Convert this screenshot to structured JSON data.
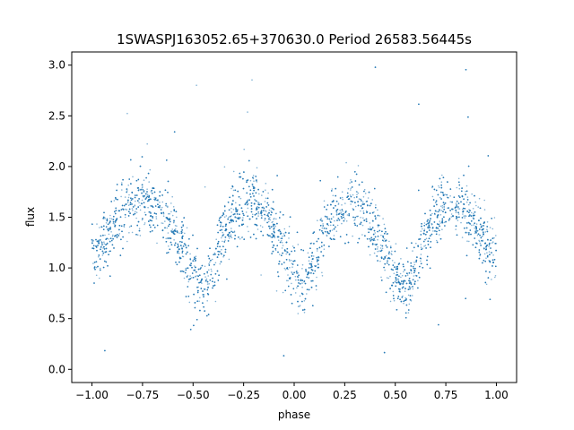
{
  "chart_data": {
    "type": "scatter",
    "title": "1SWASPJ163052.65+370630.0 Period 26583.56445s",
    "xlabel": "phase",
    "ylabel": "flux",
    "xlim": [
      -1.1,
      1.1
    ],
    "ylim": [
      -0.13,
      3.13
    ],
    "xticks": [
      -1.0,
      -0.75,
      -0.5,
      -0.25,
      0.0,
      0.25,
      0.5,
      0.75,
      1.0
    ],
    "xtick_labels": [
      "−1.00",
      "−0.75",
      "−0.50",
      "−0.25",
      "0.00",
      "0.25",
      "0.50",
      "0.75",
      "1.00"
    ],
    "yticks": [
      0.0,
      0.5,
      1.0,
      1.5,
      2.0,
      2.5,
      3.0
    ],
    "ytick_labels": [
      "0.0",
      "0.5",
      "1.0",
      "1.5",
      "2.0",
      "2.5",
      "3.0"
    ],
    "grid": false,
    "point_color": "#1f77b4",
    "series": [
      {
        "phase": [
          -1.0,
          -0.95,
          -0.9,
          -0.85,
          -0.8,
          -0.75,
          -0.7,
          -0.65,
          -0.6,
          -0.55,
          -0.5,
          -0.45,
          -0.4,
          -0.35,
          -0.3,
          -0.25,
          -0.2,
          -0.15,
          -0.1,
          -0.05,
          0.0,
          0.05,
          0.1,
          0.15,
          0.2,
          0.25,
          0.3,
          0.35,
          0.4,
          0.45,
          0.5,
          0.55,
          0.6,
          0.65,
          0.7,
          0.75,
          0.8,
          0.85,
          0.9,
          0.95,
          1.0
        ],
        "flux": [
          1.15,
          1.25,
          1.42,
          1.55,
          1.63,
          1.66,
          1.63,
          1.55,
          1.4,
          1.18,
          0.92,
          0.8,
          1.0,
          1.3,
          1.52,
          1.62,
          1.65,
          1.58,
          1.4,
          1.15,
          0.95,
          0.85,
          1.05,
          1.35,
          1.55,
          1.64,
          1.64,
          1.55,
          1.38,
          1.12,
          0.92,
          0.78,
          1.02,
          1.32,
          1.55,
          1.64,
          1.65,
          1.57,
          1.42,
          1.25,
          1.15
        ],
        "scatter_sd": 0.22
      }
    ]
  }
}
